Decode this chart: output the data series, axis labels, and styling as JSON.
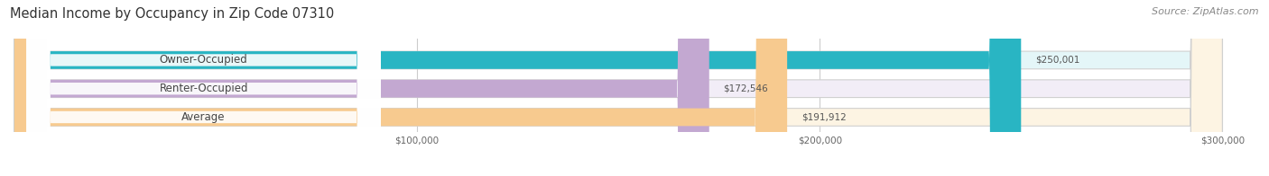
{
  "title": "Median Income by Occupancy in Zip Code 07310",
  "source": "Source: ZipAtlas.com",
  "categories": [
    "Owner-Occupied",
    "Renter-Occupied",
    "Average"
  ],
  "values": [
    250001,
    172546,
    191912
  ],
  "labels": [
    "$250,001",
    "$172,546",
    "$191,912"
  ],
  "bar_colors": [
    "#29b5c3",
    "#c3a8d1",
    "#f7ca8f"
  ],
  "bar_bg_colors": [
    "#e4f6f8",
    "#f2edf7",
    "#fdf4e3"
  ],
  "bar_edge_color": "#d0d0d0",
  "xmin": 0,
  "xmax": 300000,
  "xticks": [
    100000,
    200000,
    300000
  ],
  "xticklabels": [
    "$100,000",
    "$200,000",
    "$300,000"
  ],
  "title_fontsize": 10.5,
  "source_fontsize": 8,
  "label_fontsize": 7.5,
  "cat_fontsize": 8.5,
  "figsize": [
    14.06,
    1.96
  ],
  "dpi": 100
}
